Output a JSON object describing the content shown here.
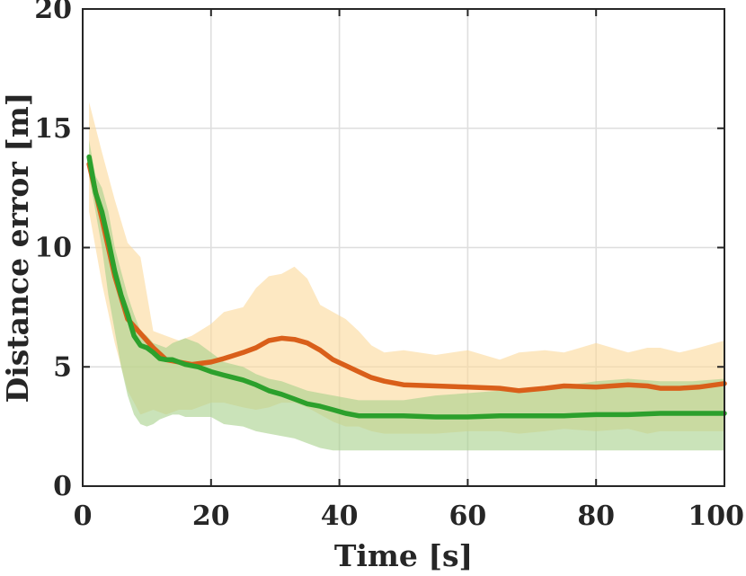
{
  "chart_data": {
    "type": "line",
    "title": "",
    "xlabel": "Time [s]",
    "ylabel": "Distance error [m]",
    "xlim": [
      0,
      100
    ],
    "ylim": [
      0,
      20
    ],
    "xticks": [
      0,
      20,
      40,
      60,
      80,
      100
    ],
    "xtick_labels": [
      "0",
      "20",
      "40",
      "60",
      "80",
      "100"
    ],
    "yticks": [
      0,
      5,
      10,
      15,
      20
    ],
    "ytick_labels": [
      "0",
      "5",
      "10",
      "15",
      "20"
    ],
    "grid": true,
    "legend": null,
    "series": [
      {
        "name": "orange",
        "color": "#d95f1a",
        "band_color": "#fcd89a",
        "x": [
          1,
          3,
          5,
          7,
          9,
          11,
          13,
          15,
          17,
          20,
          22,
          25,
          27,
          29,
          31,
          33,
          35,
          37,
          39,
          41,
          43,
          45,
          47,
          50,
          55,
          60,
          65,
          68,
          72,
          75,
          80,
          85,
          88,
          90,
          93,
          96,
          100
        ],
        "mean": [
          13.5,
          11.2,
          8.8,
          7.0,
          6.4,
          5.8,
          5.3,
          5.2,
          5.1,
          5.2,
          5.35,
          5.6,
          5.8,
          6.1,
          6.2,
          6.15,
          6.0,
          5.7,
          5.3,
          5.05,
          4.8,
          4.55,
          4.4,
          4.25,
          4.2,
          4.15,
          4.1,
          4.0,
          4.1,
          4.2,
          4.15,
          4.25,
          4.2,
          4.1,
          4.1,
          4.15,
          4.3
        ],
        "upper": [
          16.1,
          14.0,
          12.0,
          10.2,
          9.6,
          6.5,
          6.3,
          6.1,
          6.3,
          6.8,
          7.3,
          7.5,
          8.3,
          8.8,
          8.9,
          9.2,
          8.7,
          7.6,
          7.3,
          7.0,
          6.5,
          5.9,
          5.6,
          5.7,
          5.5,
          5.7,
          5.3,
          5.6,
          5.7,
          5.6,
          6.0,
          5.6,
          5.8,
          5.8,
          5.6,
          5.8,
          6.1
        ],
        "lower": [
          11.5,
          8.5,
          6.0,
          4.0,
          3.0,
          3.2,
          3.0,
          3.2,
          3.2,
          3.5,
          3.5,
          3.3,
          3.2,
          3.3,
          3.5,
          3.5,
          3.3,
          3.0,
          2.7,
          2.5,
          2.5,
          2.3,
          2.2,
          2.2,
          2.2,
          2.3,
          2.3,
          2.2,
          2.3,
          2.4,
          2.3,
          2.4,
          2.2,
          2.3,
          2.3,
          2.3,
          2.3
        ]
      },
      {
        "name": "green",
        "color": "#2ca02c",
        "band_color": "#a6d18a",
        "x": [
          1,
          2,
          3,
          4,
          5,
          6,
          7,
          8,
          9,
          10,
          11,
          12,
          13,
          14,
          15,
          16,
          18,
          20,
          22,
          25,
          27,
          29,
          31,
          33,
          35,
          37,
          39,
          41,
          43,
          45,
          50,
          55,
          60,
          65,
          70,
          75,
          80,
          85,
          90,
          95,
          100
        ],
        "mean": [
          13.8,
          12.3,
          11.5,
          10.3,
          9.0,
          8.0,
          7.2,
          6.3,
          5.9,
          5.8,
          5.6,
          5.35,
          5.3,
          5.3,
          5.2,
          5.1,
          5.0,
          4.8,
          4.65,
          4.45,
          4.25,
          4.0,
          3.85,
          3.65,
          3.45,
          3.35,
          3.2,
          3.05,
          2.95,
          2.95,
          2.95,
          2.9,
          2.9,
          2.95,
          2.95,
          2.95,
          3.0,
          3.0,
          3.05,
          3.05,
          3.05
        ],
        "upper": [
          14.5,
          13.0,
          12.5,
          11.5,
          10.0,
          9.0,
          8.0,
          7.2,
          6.5,
          6.3,
          6.0,
          5.9,
          5.8,
          6.0,
          6.1,
          6.2,
          6.0,
          5.6,
          5.2,
          5.0,
          4.7,
          4.5,
          4.4,
          4.2,
          4.0,
          3.9,
          3.8,
          3.7,
          3.6,
          3.6,
          3.6,
          3.8,
          3.9,
          4.0,
          4.1,
          4.2,
          4.4,
          4.5,
          4.4,
          4.4,
          4.5
        ],
        "lower": [
          13.0,
          11.5,
          10.0,
          8.0,
          6.5,
          5.0,
          3.8,
          3.0,
          2.6,
          2.5,
          2.6,
          2.8,
          2.9,
          3.0,
          3.0,
          2.9,
          2.9,
          2.9,
          2.6,
          2.5,
          2.3,
          2.2,
          2.1,
          2.0,
          1.8,
          1.6,
          1.5,
          1.5,
          1.5,
          1.5,
          1.5,
          1.5,
          1.5,
          1.5,
          1.5,
          1.5,
          1.5,
          1.5,
          1.5,
          1.5,
          1.5
        ]
      }
    ]
  }
}
